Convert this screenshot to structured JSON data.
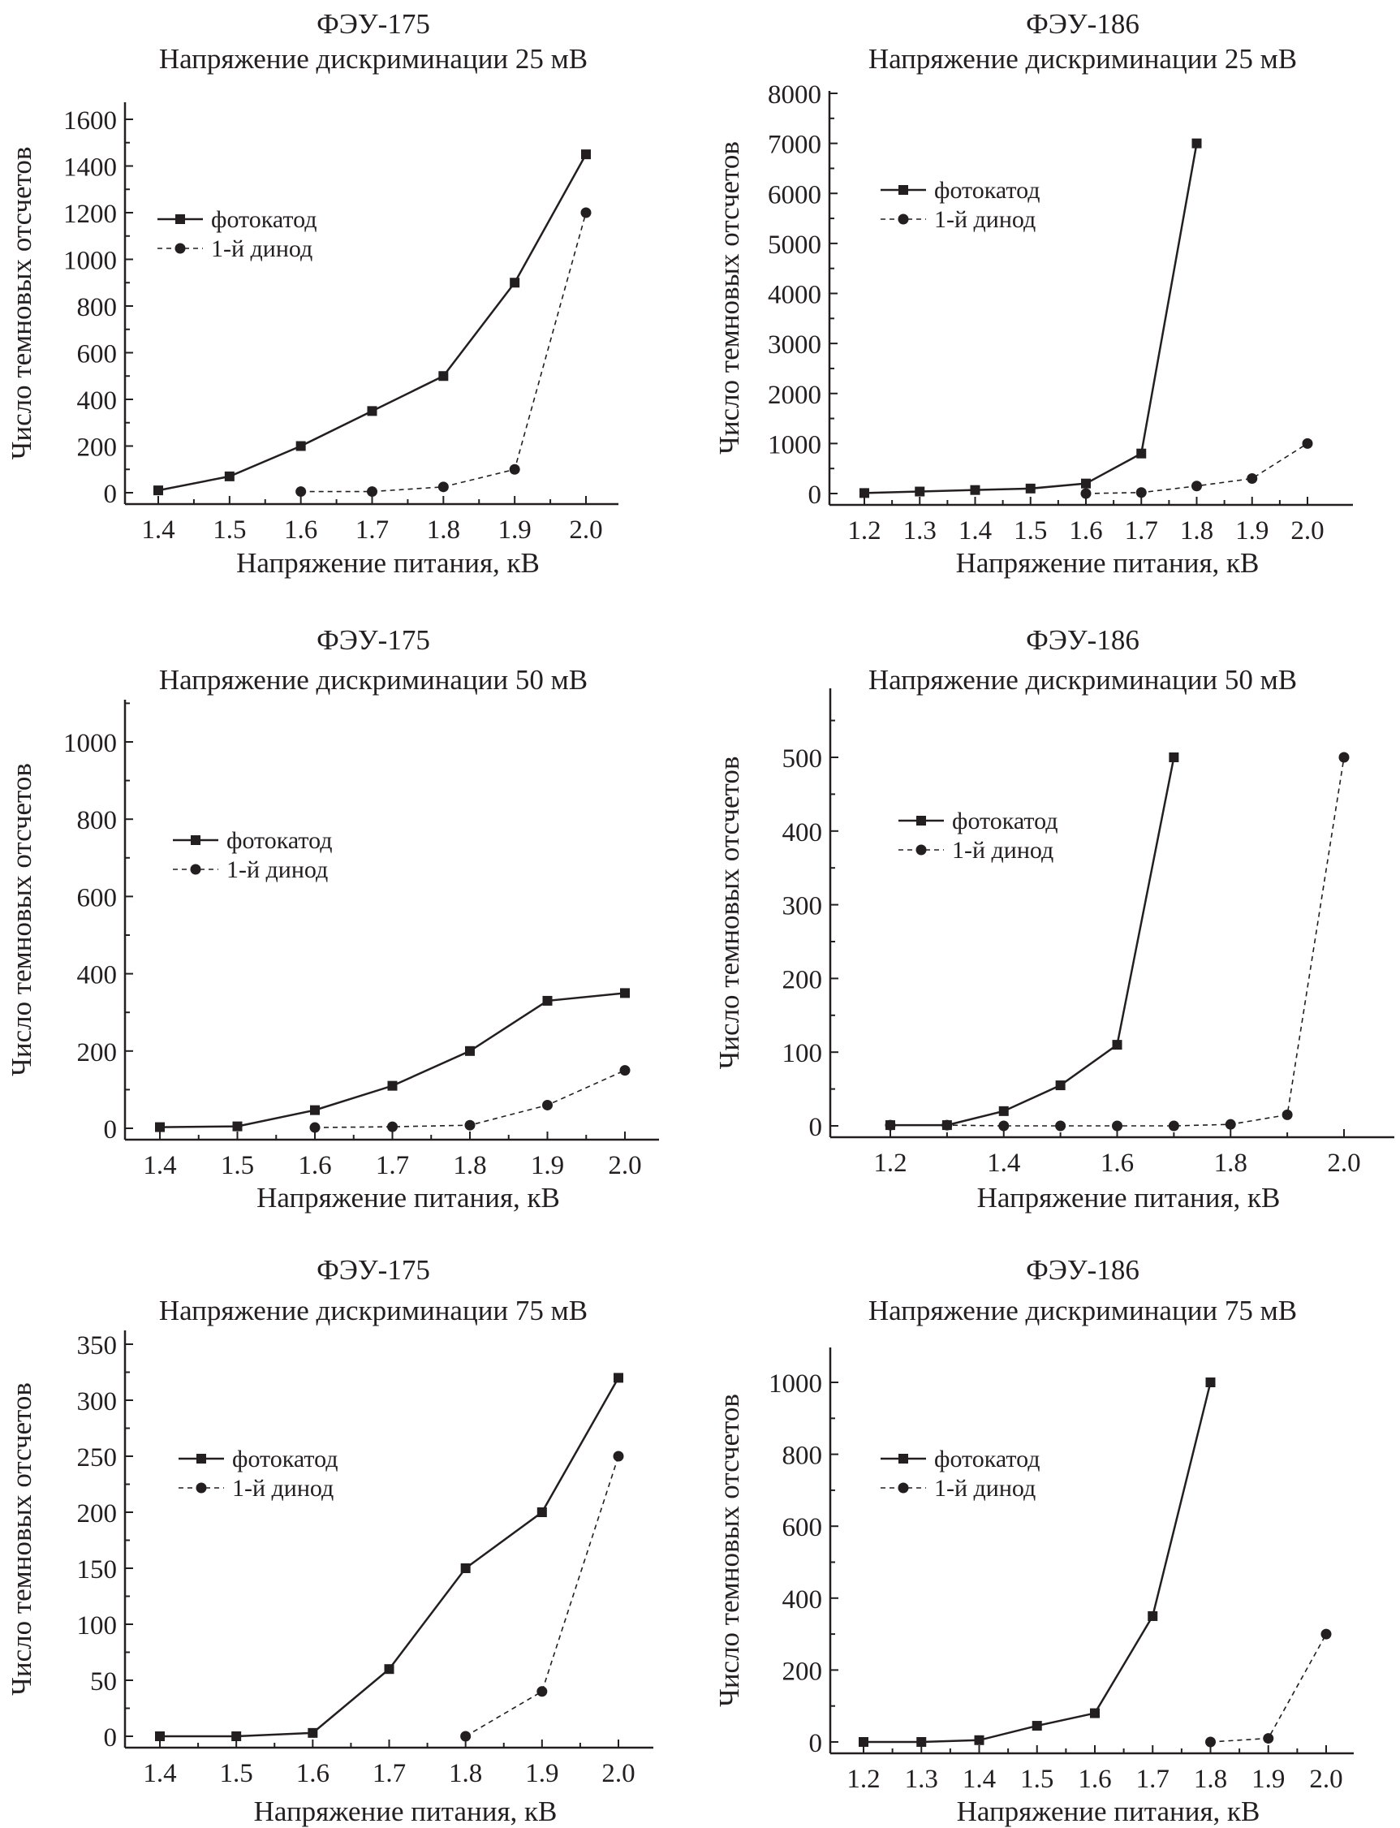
{
  "chart_data": [
    {
      "type": "line",
      "title": "ФЭУ-175",
      "subtitle": "Напряжение дискриминации 25 мВ",
      "xlabel": "Напряжение питания, кВ",
      "ylabel": "Число темновых отсчетов",
      "xlim": [
        1.4,
        2.0
      ],
      "xticks": [
        1.4,
        1.5,
        1.6,
        1.7,
        1.8,
        1.9,
        2.0
      ],
      "xticklabels": [
        "1.4",
        "1.5",
        "1.6",
        "1.7",
        "1.8",
        "1.9",
        "2.0"
      ],
      "ylim": [
        0,
        1600
      ],
      "yticks": [
        0,
        200,
        400,
        600,
        800,
        1000,
        1200,
        1400,
        1600
      ],
      "yticklabels": [
        "0",
        "200",
        "400",
        "600",
        "800",
        "1000",
        "1200",
        "1400",
        "1600"
      ],
      "legend": "upper-left",
      "grid": false,
      "series": [
        {
          "name": "фотокатод",
          "marker": "square",
          "line": "solid",
          "x": [
            1.4,
            1.5,
            1.6,
            1.7,
            1.8,
            1.9,
            2.0
          ],
          "y": [
            10,
            70,
            200,
            350,
            500,
            900,
            1450
          ]
        },
        {
          "name": "1-й динод",
          "marker": "circle",
          "line": "dashed",
          "x": [
            1.6,
            1.7,
            1.8,
            1.9,
            2.0
          ],
          "y": [
            5,
            5,
            25,
            100,
            1200
          ]
        }
      ]
    },
    {
      "type": "line",
      "title": "ФЭУ-186",
      "subtitle": "Напряжение дискриминации 25 мВ",
      "xlabel": "Напряжение питания, кВ",
      "ylabel": "Число темновых отсчетов",
      "xlim": [
        1.2,
        2.0
      ],
      "xticks": [
        1.2,
        1.3,
        1.4,
        1.5,
        1.6,
        1.7,
        1.8,
        1.9,
        2.0
      ],
      "xticklabels": [
        "1.2",
        "1.3",
        "1.4",
        "1.5",
        "1.6",
        "1.7",
        "1.8",
        "1.9",
        "2.0"
      ],
      "ylim": [
        0,
        8000
      ],
      "yticks": [
        0,
        1000,
        2000,
        3000,
        4000,
        5000,
        6000,
        7000,
        8000
      ],
      "yticklabels": [
        "0",
        "1000",
        "2000",
        "3000",
        "4000",
        "5000",
        "6000",
        "7000",
        "8000"
      ],
      "legend": "upper-left",
      "grid": false,
      "series": [
        {
          "name": "фотокатод",
          "marker": "square",
          "line": "solid",
          "x": [
            1.2,
            1.3,
            1.4,
            1.5,
            1.6,
            1.7,
            1.8
          ],
          "y": [
            10,
            40,
            70,
            100,
            200,
            800,
            7000
          ]
        },
        {
          "name": "1-й динод",
          "marker": "circle",
          "line": "dashed",
          "x": [
            1.6,
            1.7,
            1.8,
            1.9,
            2.0
          ],
          "y": [
            0,
            20,
            150,
            300,
            1000
          ]
        }
      ]
    },
    {
      "type": "line",
      "title": "ФЭУ-175",
      "subtitle": "Напряжение дискриминации 50 мВ",
      "xlabel": "Напряжение питания, кВ",
      "ylabel": "Число темновых отсчетов",
      "xlim": [
        1.4,
        2.0
      ],
      "xticks": [
        1.4,
        1.5,
        1.6,
        1.7,
        1.8,
        1.9,
        2.0
      ],
      "xticklabels": [
        "1.4",
        "1.5",
        "1.6",
        "1.7",
        "1.8",
        "1.9",
        "2.0"
      ],
      "ylim": [
        0,
        1000
      ],
      "yticks": [
        0,
        200,
        400,
        600,
        800,
        1000
      ],
      "yticklabels": [
        "0",
        "200",
        "400",
        "600",
        "800",
        "1000"
      ],
      "legend": "upper-left",
      "grid": false,
      "series": [
        {
          "name": "фотокатод",
          "marker": "square",
          "line": "solid",
          "x": [
            1.4,
            1.5,
            1.6,
            1.7,
            1.8,
            1.9,
            2.0
          ],
          "y": [
            3,
            5,
            47,
            110,
            200,
            330,
            350
          ]
        },
        {
          "name": "1-й динод",
          "marker": "circle",
          "line": "dashed",
          "x": [
            1.6,
            1.7,
            1.8,
            1.9,
            2.0
          ],
          "y": [
            2,
            4,
            8,
            60,
            150
          ]
        }
      ]
    },
    {
      "type": "line",
      "title": "ФЭУ-186",
      "subtitle": "Напряжение дискриминации 50 мВ",
      "xlabel": "Напряжение питания, кВ",
      "ylabel": "Число темновых отсчетов",
      "xlim": [
        1.2,
        2.0
      ],
      "xticks": [
        1.2,
        1.4,
        1.6,
        1.8,
        2.0
      ],
      "xticklabels": [
        "1.2",
        "1.4",
        "1.6",
        "1.8",
        "2.0"
      ],
      "ylim": [
        0,
        500
      ],
      "yticks": [
        0,
        100,
        200,
        300,
        400,
        500
      ],
      "yticklabels": [
        "0",
        "100",
        "200",
        "300",
        "400",
        "500"
      ],
      "legend": "upper-left",
      "grid": false,
      "series": [
        {
          "name": "фотокатод",
          "marker": "square",
          "line": "solid",
          "x": [
            1.2,
            1.3,
            1.4,
            1.5,
            1.6,
            1.7
          ],
          "y": [
            1,
            1,
            20,
            55,
            110,
            500
          ]
        },
        {
          "name": "1-й динод",
          "marker": "circle",
          "line": "dashed",
          "x": [
            1.2,
            1.3,
            1.4,
            1.5,
            1.6,
            1.7,
            1.8,
            1.9,
            2.0
          ],
          "y": [
            1,
            1,
            0,
            0,
            0,
            0,
            2,
            15,
            500
          ]
        }
      ]
    },
    {
      "type": "line",
      "title": "ФЭУ-175",
      "subtitle": "Напряжение дискриминации 75 мВ",
      "xlabel": "Напряжение питания, кВ",
      "ylabel": "Число темновых отсчетов",
      "xlim": [
        1.4,
        2.0
      ],
      "xticks": [
        1.4,
        1.5,
        1.6,
        1.7,
        1.8,
        1.9,
        2.0
      ],
      "xticklabels": [
        "1.4",
        "1.5",
        "1.6",
        "1.7",
        "1.8",
        "1.9",
        "2.0"
      ],
      "ylim": [
        0,
        350
      ],
      "yticks": [
        0,
        50,
        100,
        150,
        200,
        250,
        300,
        350
      ],
      "yticklabels": [
        "0",
        "50",
        "100",
        "150",
        "200",
        "250",
        "300",
        "350"
      ],
      "legend": "upper-left",
      "grid": false,
      "series": [
        {
          "name": "фотокатод",
          "marker": "square",
          "line": "solid",
          "x": [
            1.4,
            1.5,
            1.6,
            1.7,
            1.8,
            1.9,
            2.0
          ],
          "y": [
            0,
            0,
            3,
            60,
            150,
            200,
            320
          ]
        },
        {
          "name": "1-й динод",
          "marker": "circle",
          "line": "dashed",
          "x": [
            1.8,
            1.9,
            2.0
          ],
          "y": [
            0,
            40,
            250
          ]
        }
      ]
    },
    {
      "type": "line",
      "title": "ФЭУ-186",
      "subtitle": "Напряжение дискриминации 75 мВ",
      "xlabel": "Напряжение питания, кВ",
      "ylabel": "Число темновых отсчетов",
      "xlim": [
        1.2,
        2.0
      ],
      "xticks": [
        1.2,
        1.3,
        1.4,
        1.5,
        1.6,
        1.7,
        1.8,
        1.9,
        2.0
      ],
      "xticklabels": [
        "1.2",
        "1.3",
        "1.4",
        "1.5",
        "1.6",
        "1.7",
        "1.8",
        "1.9",
        "2.0"
      ],
      "ylim": [
        0,
        1000
      ],
      "yticks": [
        0,
        200,
        400,
        600,
        800,
        1000
      ],
      "yticklabels": [
        "0",
        "200",
        "400",
        "600",
        "800",
        "1000"
      ],
      "legend": "upper-left",
      "grid": false,
      "series": [
        {
          "name": "фотокатод",
          "marker": "square",
          "line": "solid",
          "x": [
            1.2,
            1.3,
            1.4,
            1.5,
            1.6,
            1.7,
            1.8
          ],
          "y": [
            0,
            0,
            5,
            45,
            80,
            350,
            1000
          ]
        },
        {
          "name": "1-й динод",
          "marker": "circle",
          "line": "dashed",
          "x": [
            1.8,
            1.9,
            2.0
          ],
          "y": [
            0,
            10,
            300
          ]
        }
      ]
    }
  ]
}
